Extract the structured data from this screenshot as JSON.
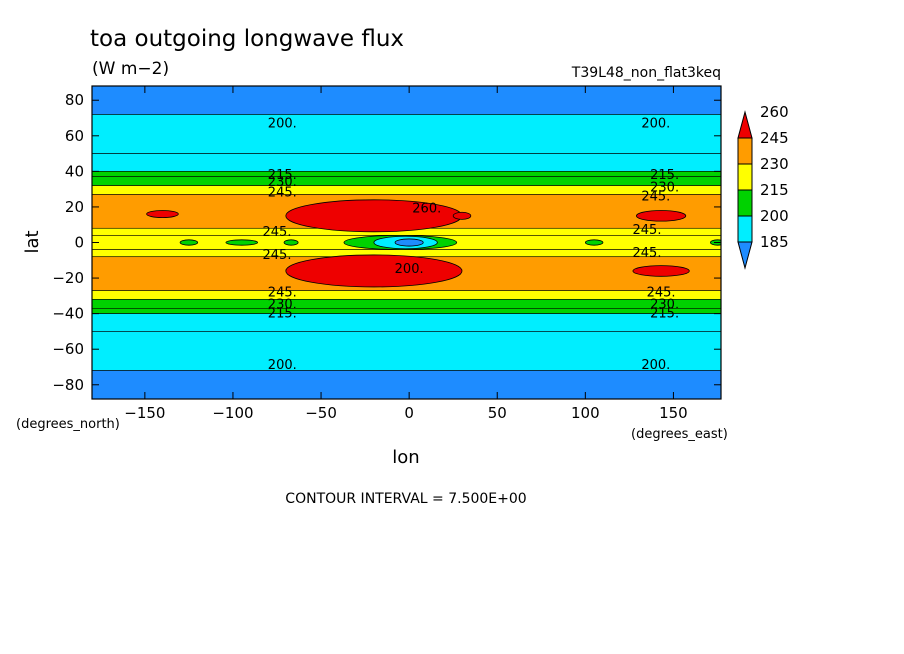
{
  "chart_data": {
    "type": "heatmap",
    "title": "toa outgoing longwave flux",
    "units": "(W m−2)",
    "run_label": "T39L48_non_flat3keq",
    "xlabel": "lon",
    "ylabel": "lat",
    "x_units_label": "(degrees_east)",
    "y_units_label": "(degrees_north)",
    "contour_interval_text": "CONTOUR INTERVAL = 7.500E+00",
    "xlim": [
      -180,
      177
    ],
    "ylim": [
      -88,
      88
    ],
    "x_ticks": [
      -150,
      -100,
      -50,
      0,
      50,
      100,
      150
    ],
    "x_tick_labels": [
      "−150",
      "−100",
      "−50",
      "0",
      "50",
      "100",
      "150"
    ],
    "y_ticks": [
      80,
      60,
      40,
      20,
      0,
      -20,
      -40,
      -60,
      -80
    ],
    "y_tick_labels": [
      "80",
      "60",
      "40",
      "20",
      "0",
      "−20",
      "−40",
      "−60",
      "−80"
    ],
    "colorbar": {
      "levels": [
        185,
        200,
        215,
        230,
        245,
        260
      ],
      "labels": [
        "185",
        "200",
        "215",
        "230",
        "245",
        "260"
      ],
      "colors": [
        "#1e8cff",
        "#00eeff",
        "#00d200",
        "#ffff00",
        "#ff9c00",
        "#ee0000"
      ]
    },
    "zonal_bands": [
      {
        "lat_from": 72,
        "lat_to": 88,
        "value": 192
      },
      {
        "lat_from": 50,
        "lat_to": 72,
        "value": 207
      },
      {
        "lat_from": 40,
        "lat_to": 50,
        "value": 207
      },
      {
        "lat_from": 37,
        "lat_to": 40,
        "value": 222
      },
      {
        "lat_from": 32,
        "lat_to": 37,
        "value": 222
      },
      {
        "lat_from": 27,
        "lat_to": 32,
        "value": 237
      },
      {
        "lat_from": 8,
        "lat_to": 27,
        "value": 252
      },
      {
        "lat_from": 4,
        "lat_to": 8,
        "value": 237
      },
      {
        "lat_from": -4,
        "lat_to": 4,
        "value": 237
      },
      {
        "lat_from": -8,
        "lat_to": -4,
        "value": 237
      },
      {
        "lat_from": -27,
        "lat_to": -8,
        "value": 252
      },
      {
        "lat_from": -32,
        "lat_to": -27,
        "value": 237
      },
      {
        "lat_from": -37,
        "lat_to": -32,
        "value": 222
      },
      {
        "lat_from": -40,
        "lat_to": -37,
        "value": 222
      },
      {
        "lat_from": -50,
        "lat_to": -40,
        "value": 207
      },
      {
        "lat_from": -72,
        "lat_to": -50,
        "value": 207
      },
      {
        "lat_from": -88,
        "lat_to": -72,
        "value": 192
      }
    ],
    "regional_features": [
      {
        "lon": -20,
        "lat": 15,
        "lon_radius": 50,
        "lat_radius": 9,
        "value": 265
      },
      {
        "lon": -20,
        "lat": -16,
        "lon_radius": 50,
        "lat_radius": 9,
        "value": 265
      },
      {
        "lon": 143,
        "lat": 15,
        "lon_radius": 14,
        "lat_radius": 3,
        "value": 265
      },
      {
        "lon": 143,
        "lat": -16,
        "lon_radius": 16,
        "lat_radius": 3,
        "value": 265
      },
      {
        "lon": -140,
        "lat": 16,
        "lon_radius": 9,
        "lat_radius": 2,
        "value": 265
      },
      {
        "lon": 30,
        "lat": 15,
        "lon_radius": 5,
        "lat_radius": 2,
        "value": 265
      },
      {
        "lon": -5,
        "lat": 0,
        "lon_radius": 32,
        "lat_radius": 4,
        "value": 222
      },
      {
        "lon": -2,
        "lat": 0,
        "lon_radius": 18,
        "lat_radius": 3.5,
        "value": 207
      },
      {
        "lon": 0,
        "lat": 0,
        "lon_radius": 8,
        "lat_radius": 2,
        "value": 192
      },
      {
        "lon": -95,
        "lat": 0,
        "lon_radius": 9,
        "lat_radius": 1.5,
        "value": 222
      },
      {
        "lon": -125,
        "lat": 0,
        "lon_radius": 5,
        "lat_radius": 1.5,
        "value": 222
      },
      {
        "lon": -67,
        "lat": 0,
        "lon_radius": 4,
        "lat_radius": 1.5,
        "value": 222
      },
      {
        "lon": 105,
        "lat": 0,
        "lon_radius": 5,
        "lat_radius": 1.5,
        "value": 222
      },
      {
        "lon": 175,
        "lat": 0,
        "lon_radius": 4,
        "lat_radius": 1.5,
        "value": 222
      }
    ],
    "contour_labels": [
      {
        "text": "200.",
        "lon": -72,
        "lat": 67
      },
      {
        "text": "200.",
        "lon": 140,
        "lat": 67
      },
      {
        "text": "215.",
        "lon": -72,
        "lat": 38
      },
      {
        "text": "215.",
        "lon": 145,
        "lat": 38
      },
      {
        "text": "230.",
        "lon": -72,
        "lat": 34
      },
      {
        "text": "230.",
        "lon": 145,
        "lat": 31
      },
      {
        "text": "245.",
        "lon": -72,
        "lat": 28
      },
      {
        "text": "245.",
        "lon": 140,
        "lat": 26
      },
      {
        "text": "260.",
        "lon": 10,
        "lat": 19
      },
      {
        "text": "245.",
        "lon": -75,
        "lat": 6
      },
      {
        "text": "245.",
        "lon": 135,
        "lat": 7
      },
      {
        "text": "245.",
        "lon": -75,
        "lat": -7
      },
      {
        "text": "245.",
        "lon": 135,
        "lat": -6
      },
      {
        "text": "200.",
        "lon": 0,
        "lat": -15
      },
      {
        "text": "245.",
        "lon": -72,
        "lat": -28
      },
      {
        "text": "245.",
        "lon": 143,
        "lat": -28
      },
      {
        "text": "230.",
        "lon": -72,
        "lat": -35
      },
      {
        "text": "230.",
        "lon": 145,
        "lat": -35
      },
      {
        "text": "215.",
        "lon": -72,
        "lat": -40
      },
      {
        "text": "215.",
        "lon": 145,
        "lat": -40
      },
      {
        "text": "200.",
        "lon": -72,
        "lat": -69
      },
      {
        "text": "200.",
        "lon": 140,
        "lat": -69
      }
    ],
    "grid": false,
    "legend": "right"
  }
}
